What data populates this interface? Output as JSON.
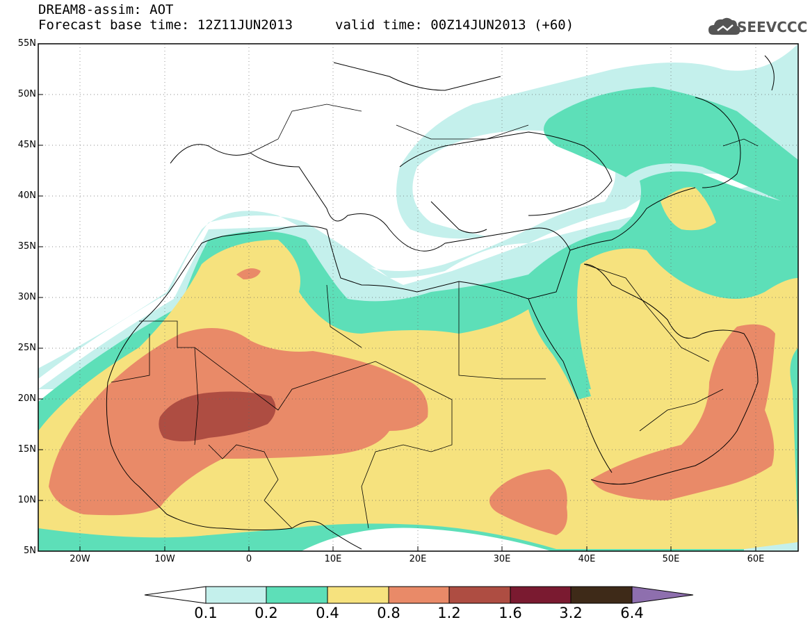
{
  "header": {
    "title": "DREAM8-assim: AOT",
    "base_time": "Forecast base time: 12Z11JUN2013",
    "valid_time": "valid time: 00Z14JUN2013 (+60)",
    "logo_text": "SEEVCCC"
  },
  "map": {
    "lat_labels": [
      "55N",
      "50N",
      "45N",
      "40N",
      "35N",
      "30N",
      "25N",
      "20N",
      "15N",
      "10N",
      "5N"
    ],
    "lon_labels": [
      "20W",
      "10W",
      "0",
      "10E",
      "20E",
      "30E",
      "40E",
      "50E",
      "60E"
    ],
    "lat_range": [
      5,
      55
    ],
    "lon_range": [
      -25,
      65
    ],
    "grid": true
  },
  "colorbar": {
    "levels": [
      "0.1",
      "0.2",
      "0.4",
      "0.8",
      "1.2",
      "1.6",
      "3.2",
      "6.4"
    ],
    "colors": {
      "c1": "#c4f0ec",
      "c2": "#5ddfb8",
      "c3": "#f6e27e",
      "c4": "#e98a68",
      "c5": "#ae4d42",
      "c6": "#7a1a30",
      "c7": "#3e2a18",
      "c8": "#8e6fae"
    }
  }
}
